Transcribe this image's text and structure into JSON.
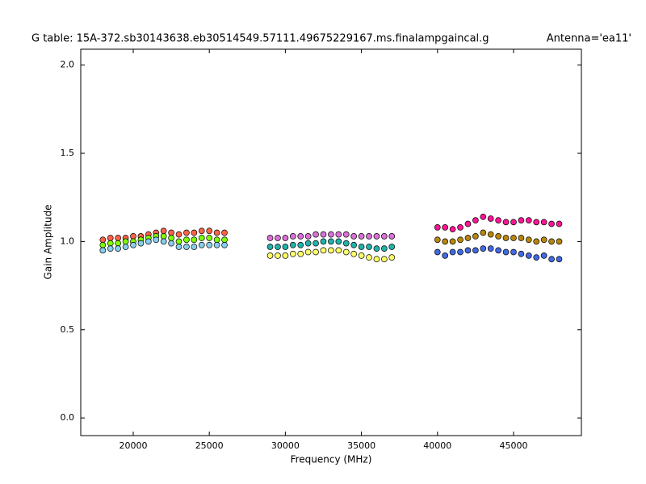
{
  "chart_data": {
    "type": "scatter",
    "title": "G table: 15A-372.sb30143638.eb30514549.57111.49675229167.ms.finalampgaincal.g",
    "subtitle": "Antenna='ea11'",
    "x_label": "Frequency (MHz)",
    "y_label": "Gain Amplitude",
    "xlim": [
      16550,
      49460
    ],
    "ylim": [
      -0.1,
      2.09
    ],
    "xticks": [
      20000,
      25000,
      30000,
      35000,
      40000,
      45000
    ],
    "yticks": [
      {
        "value": 0,
        "label": "0.0"
      },
      0.5,
      {
        "value": 1,
        "label": "1.0"
      },
      1.5,
      {
        "value": 2,
        "label": "2.0"
      }
    ],
    "grid": false,
    "series": [
      {
        "color": "#ff6347",
        "x": [
          18000,
          18500,
          19000,
          19500,
          20000,
          20500,
          21000,
          21500,
          22000,
          22500,
          23000,
          23500,
          24000,
          24500,
          25000,
          25500,
          26000
        ],
        "values": [
          1.01,
          1.02,
          1.02,
          1.02,
          1.03,
          1.03,
          1.04,
          1.05,
          1.06,
          1.05,
          1.04,
          1.05,
          1.05,
          1.06,
          1.06,
          1.05,
          1.05
        ]
      },
      {
        "color": "#7fff00",
        "x": [
          18000,
          18500,
          19000,
          19500,
          20000,
          20500,
          21000,
          21500,
          22000,
          22500,
          23000,
          23500,
          24000,
          24500,
          25000,
          25500,
          26000
        ],
        "values": [
          0.98,
          0.99,
          0.99,
          1.0,
          1.0,
          1.01,
          1.02,
          1.03,
          1.03,
          1.02,
          1.0,
          1.01,
          1.01,
          1.02,
          1.02,
          1.01,
          1.01
        ]
      },
      {
        "color": "#87ceeb",
        "x": [
          18000,
          18500,
          19000,
          19500,
          20000,
          20500,
          21000,
          21500,
          22000,
          22500,
          23000,
          23500,
          24000,
          24500,
          25000,
          25500,
          26000
        ],
        "values": [
          0.95,
          0.96,
          0.96,
          0.97,
          0.98,
          0.99,
          1.0,
          1.01,
          1.0,
          0.99,
          0.97,
          0.97,
          0.97,
          0.98,
          0.98,
          0.98,
          0.98
        ]
      },
      {
        "color": "#da70d6",
        "x": [
          29000,
          29500,
          30000,
          30500,
          31000,
          31500,
          32000,
          32500,
          33000,
          33500,
          34000,
          34500,
          35000,
          35500,
          36000,
          36500,
          37000
        ],
        "values": [
          1.02,
          1.02,
          1.02,
          1.03,
          1.03,
          1.03,
          1.04,
          1.04,
          1.04,
          1.04,
          1.04,
          1.03,
          1.03,
          1.03,
          1.03,
          1.03,
          1.03
        ]
      },
      {
        "color": "#20b2aa",
        "x": [
          29000,
          29500,
          30000,
          30500,
          31000,
          31500,
          32000,
          32500,
          33000,
          33500,
          34000,
          34500,
          35000,
          35500,
          36000,
          36500,
          37000
        ],
        "values": [
          0.97,
          0.97,
          0.97,
          0.98,
          0.98,
          0.99,
          0.99,
          1.0,
          1.0,
          1.0,
          0.99,
          0.98,
          0.97,
          0.97,
          0.96,
          0.96,
          0.97
        ]
      },
      {
        "color": "#ffff66",
        "x": [
          29000,
          29500,
          30000,
          30500,
          31000,
          31500,
          32000,
          32500,
          33000,
          33500,
          34000,
          34500,
          35000,
          35500,
          36000,
          36500,
          37000
        ],
        "values": [
          0.92,
          0.92,
          0.92,
          0.93,
          0.93,
          0.94,
          0.94,
          0.95,
          0.95,
          0.95,
          0.94,
          0.93,
          0.92,
          0.91,
          0.9,
          0.9,
          0.91
        ]
      },
      {
        "color": "#ff1493",
        "x": [
          40000,
          40500,
          41000,
          41500,
          42000,
          42500,
          43000,
          43500,
          44000,
          44500,
          45000,
          45500,
          46000,
          46500,
          47000,
          47500,
          48000
        ],
        "values": [
          1.08,
          1.08,
          1.07,
          1.08,
          1.1,
          1.12,
          1.14,
          1.13,
          1.12,
          1.11,
          1.11,
          1.12,
          1.12,
          1.11,
          1.11,
          1.1,
          1.1
        ]
      },
      {
        "color": "#b8860b",
        "x": [
          40000,
          40500,
          41000,
          41500,
          42000,
          42500,
          43000,
          43500,
          44000,
          44500,
          45000,
          45500,
          46000,
          46500,
          47000,
          47500,
          48000
        ],
        "values": [
          1.01,
          1.0,
          1.0,
          1.01,
          1.02,
          1.03,
          1.05,
          1.04,
          1.03,
          1.02,
          1.02,
          1.02,
          1.01,
          1.0,
          1.01,
          1.0,
          1.0
        ]
      },
      {
        "color": "#4169e1",
        "x": [
          40000,
          40500,
          41000,
          41500,
          42000,
          42500,
          43000,
          43500,
          44000,
          44500,
          45000,
          45500,
          46000,
          46500,
          47000,
          47500,
          48000
        ],
        "values": [
          0.94,
          0.92,
          0.94,
          0.94,
          0.95,
          0.95,
          0.96,
          0.96,
          0.95,
          0.94,
          0.94,
          0.93,
          0.92,
          0.91,
          0.92,
          0.9,
          0.9
        ]
      }
    ]
  }
}
